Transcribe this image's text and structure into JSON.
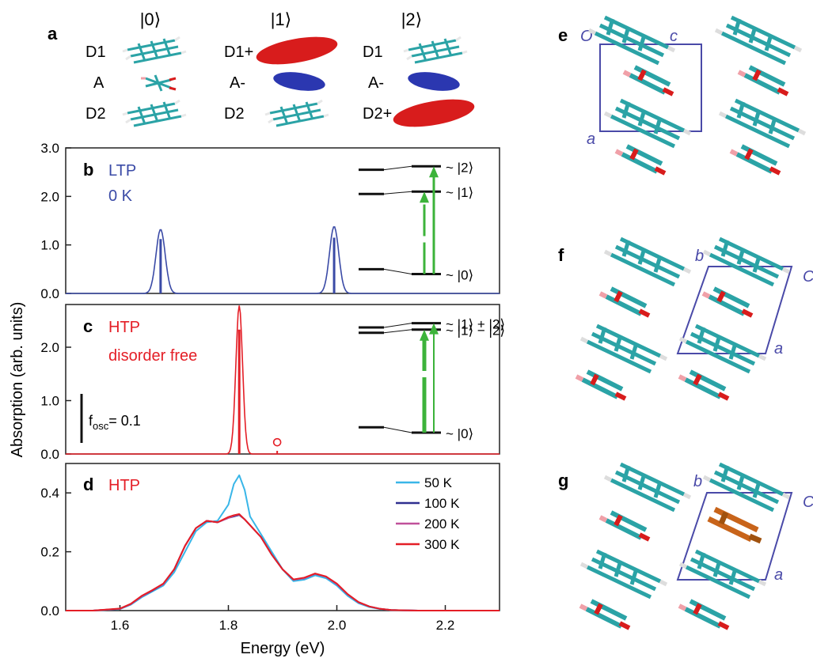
{
  "figure": {
    "panel_letters": {
      "a": "a",
      "b": "b",
      "c": "c",
      "d": "d",
      "e": "e",
      "f": "f",
      "g": "g"
    },
    "state_labels": [
      "|0⟩",
      "|1⟩",
      "|2⟩"
    ],
    "molecule_labels": {
      "s0": [
        "D1",
        "A",
        "D2"
      ],
      "s1": [
        "D1+",
        "A-",
        "D2"
      ],
      "s2": [
        "D1",
        "A-",
        "D2+"
      ]
    },
    "y_axis_label": "Absorption (arb. units)",
    "x_axis_label": "Energy (eV)",
    "crystal_labels": {
      "e": [
        "O",
        "c",
        "a"
      ],
      "f": [
        "b",
        "C",
        "a"
      ],
      "g": [
        "b",
        "C",
        "a"
      ]
    },
    "colors": {
      "ltp": "#3a4aa6",
      "htp": "#e41e26",
      "green": "#3cb33a",
      "s50": "#39b6e8",
      "s100": "#2f2f8f",
      "s200": "#c0509a",
      "s300": "#e41e26",
      "red_mol": "#d81c1c",
      "blue_mol": "#2b37b0",
      "teal": "#2ba3a6",
      "box": "#4a4aa8"
    }
  },
  "chart_data": [
    {
      "panel": "b",
      "type": "line",
      "title": "LTP",
      "subtitle": "0 K",
      "ylim": [
        0,
        3.0
      ],
      "yticks": [
        "0.0",
        "1.0",
        "2.0",
        "3.0"
      ],
      "xlim": [
        1.5,
        2.3
      ],
      "peaks": [
        {
          "x": 1.675,
          "height": 1.32,
          "stick": 1.12
        },
        {
          "x": 1.995,
          "height": 1.38,
          "stick": 1.15
        }
      ],
      "levels": {
        "left": [
          2.55,
          2.05,
          0.5
        ],
        "right": [
          2.62,
          2.1,
          0.4
        ],
        "labels": [
          "~ |2⟩",
          "~ |1⟩",
          "~ |0⟩"
        ]
      }
    },
    {
      "panel": "c",
      "type": "line",
      "title": "HTP",
      "subtitle": "disorder free",
      "ylim": [
        0,
        2.8
      ],
      "yticks": [
        "0.0",
        "1.0",
        "2.0"
      ],
      "xlim": [
        1.5,
        2.3
      ],
      "peaks": [
        {
          "x": 1.82,
          "height": 2.78,
          "stick": 2.33
        }
      ],
      "small_marker": {
        "x": 1.89,
        "y": 0.22,
        "label": "o"
      },
      "fosc_label": "f",
      "fosc_sub": "osc",
      "fosc_value": "= 0.1",
      "levels": {
        "left": [
          2.37,
          2.27,
          0.5
        ],
        "right": [
          2.45,
          2.33,
          0.4
        ],
        "labels": [
          "~ |1⟩ + |2⟩",
          "~ |1⟩ − |2⟩",
          "~ |0⟩"
        ]
      }
    },
    {
      "panel": "d",
      "type": "line",
      "title": "HTP",
      "xlabel": "Energy (eV)",
      "ylim": [
        0,
        0.5
      ],
      "yticks": [
        "0.0",
        "0.2",
        "0.4"
      ],
      "xlim": [
        1.5,
        2.3
      ],
      "xticks": [
        "1.6",
        "1.8",
        "2.0",
        "2.2"
      ],
      "x": [
        1.5,
        1.55,
        1.6,
        1.62,
        1.64,
        1.66,
        1.68,
        1.7,
        1.72,
        1.74,
        1.76,
        1.78,
        1.8,
        1.81,
        1.82,
        1.83,
        1.84,
        1.86,
        1.88,
        1.9,
        1.92,
        1.94,
        1.96,
        1.98,
        2.0,
        2.02,
        2.04,
        2.06,
        2.08,
        2.1,
        2.15,
        2.2,
        2.3
      ],
      "series": [
        {
          "name": "50 K",
          "values": [
            0.0,
            0.0,
            0.005,
            0.02,
            0.045,
            0.065,
            0.085,
            0.13,
            0.2,
            0.27,
            0.3,
            0.305,
            0.36,
            0.43,
            0.46,
            0.41,
            0.32,
            0.26,
            0.2,
            0.14,
            0.1,
            0.105,
            0.12,
            0.11,
            0.085,
            0.05,
            0.025,
            0.012,
            0.005,
            0.002,
            0.0,
            0.0,
            0.0
          ]
        },
        {
          "name": "100 K",
          "values": [
            0.0,
            0.0,
            0.006,
            0.022,
            0.048,
            0.068,
            0.09,
            0.14,
            0.22,
            0.28,
            0.305,
            0.3,
            0.315,
            0.32,
            0.325,
            0.31,
            0.29,
            0.25,
            0.19,
            0.14,
            0.105,
            0.11,
            0.125,
            0.115,
            0.09,
            0.055,
            0.028,
            0.014,
            0.006,
            0.002,
            0.0,
            0.0,
            0.0
          ]
        },
        {
          "name": "200 K",
          "values": [
            0.0,
            0.0,
            0.006,
            0.022,
            0.048,
            0.069,
            0.09,
            0.14,
            0.22,
            0.28,
            0.305,
            0.3,
            0.315,
            0.322,
            0.327,
            0.31,
            0.29,
            0.25,
            0.19,
            0.14,
            0.105,
            0.11,
            0.125,
            0.115,
            0.09,
            0.055,
            0.028,
            0.014,
            0.006,
            0.002,
            0.0,
            0.0,
            0.0
          ]
        },
        {
          "name": "300 K",
          "values": [
            0.0,
            0.0,
            0.007,
            0.023,
            0.05,
            0.07,
            0.092,
            0.14,
            0.22,
            0.28,
            0.305,
            0.3,
            0.318,
            0.324,
            0.328,
            0.31,
            0.29,
            0.25,
            0.19,
            0.14,
            0.106,
            0.112,
            0.126,
            0.116,
            0.092,
            0.056,
            0.029,
            0.014,
            0.006,
            0.002,
            0.0,
            0.0,
            0.0
          ]
        }
      ]
    }
  ]
}
